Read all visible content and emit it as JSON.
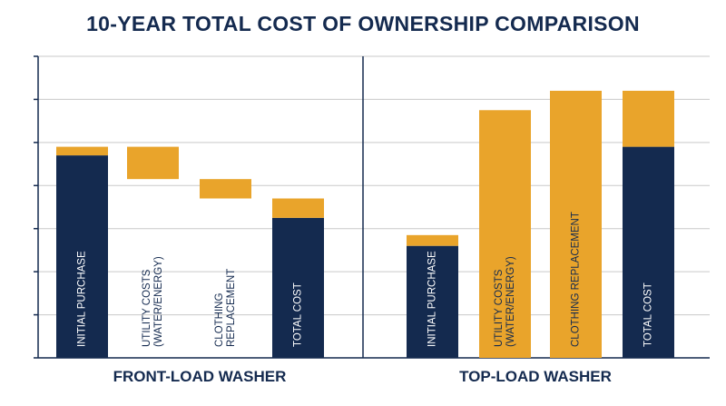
{
  "chart_data": {
    "type": "bar",
    "title": "10-YEAR TOTAL COST OF OWNERSHIP COMPARISON",
    "ylim": [
      0,
      7
    ],
    "grid": true,
    "colors": {
      "navy": "#142a4f",
      "gold": "#e9a42b",
      "grid": "#c9c9c9",
      "axis": "#142a4f"
    },
    "groups": [
      {
        "name": "FRONT-LOAD WASHER",
        "bars": [
          {
            "label": "INITIAL PURCHASE",
            "base": 0,
            "navy": 4.7,
            "gold": 0.2
          },
          {
            "label": "UTILITY COSTS\n(WATER/ENERGY)",
            "base": 4.15,
            "navy": 0,
            "gold": 0.75
          },
          {
            "label": "CLOTHING\nREPLACEMENT",
            "base": 3.7,
            "navy": 0,
            "gold": 0.45
          },
          {
            "label": "TOTAL COST",
            "base": 0,
            "navy": 3.25,
            "gold": 0.45
          }
        ]
      },
      {
        "name": "TOP-LOAD WASHER",
        "bars": [
          {
            "label": "INITIAL PURCHASE",
            "base": 0,
            "navy": 2.6,
            "gold": 0.25
          },
          {
            "label": "UTILITY COSTS\n(WATER/ENERGY)",
            "base": 0,
            "navy": 0,
            "gold": 5.75
          },
          {
            "label": "CLOTHING REPLACEMENT",
            "base": 0,
            "navy": 0,
            "gold": 6.2
          },
          {
            "label": "TOTAL COST",
            "base": 0,
            "navy": 4.9,
            "gold": 1.3
          }
        ]
      }
    ]
  }
}
